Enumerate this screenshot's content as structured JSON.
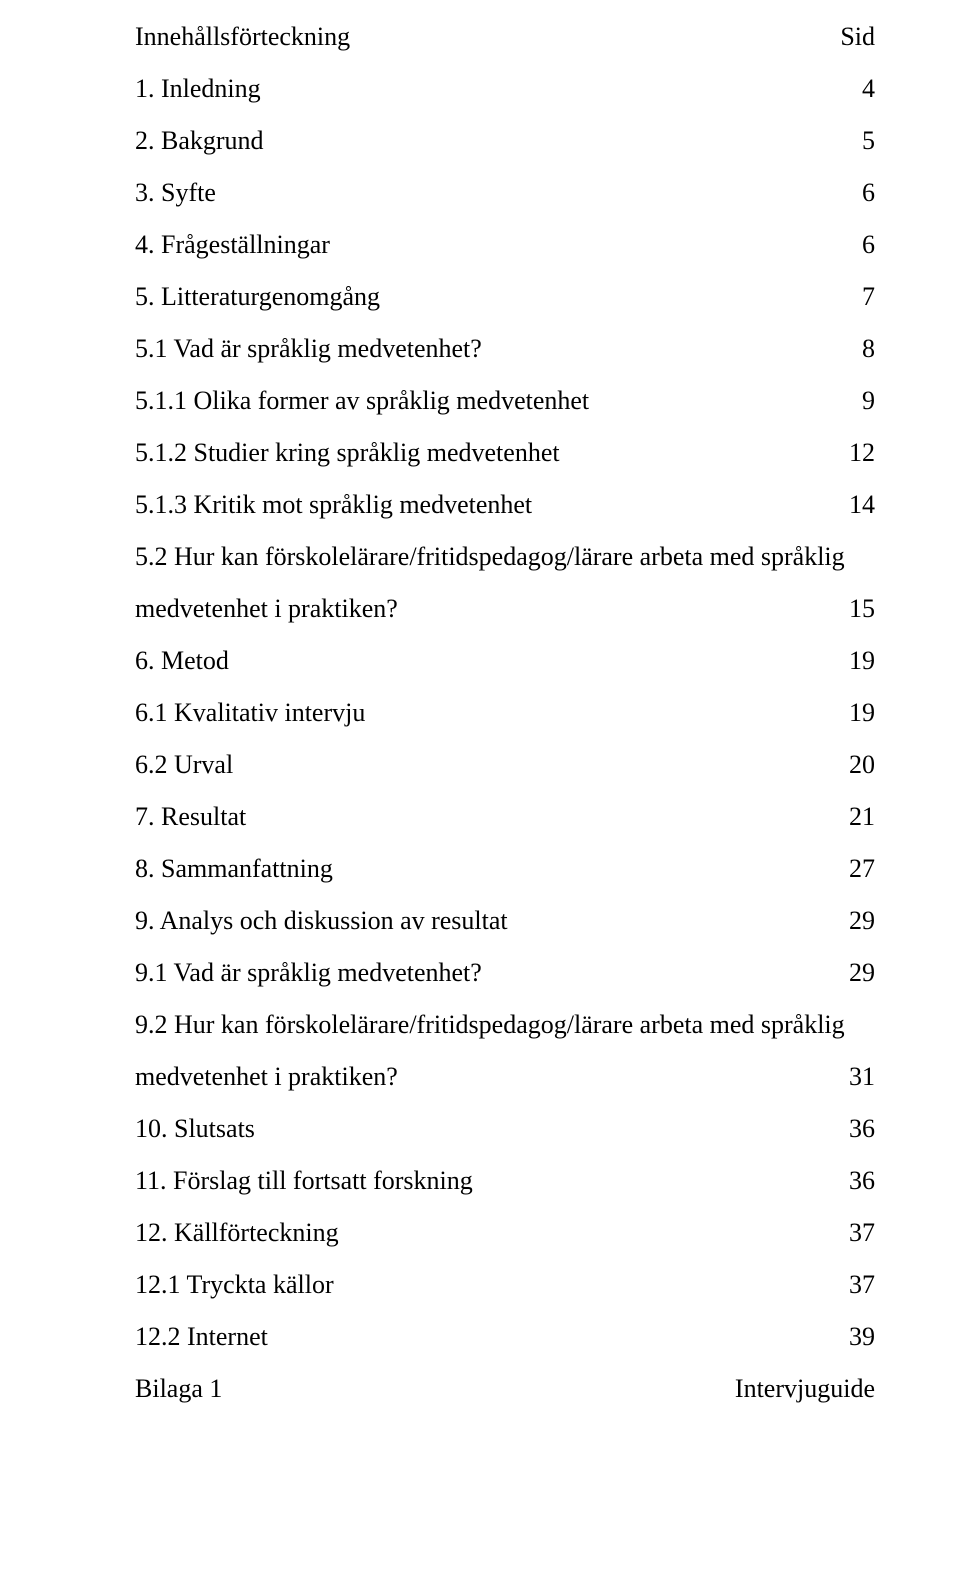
{
  "heading": {
    "label": "Innehållsförteckning",
    "page": "Sid"
  },
  "items": [
    {
      "label": "1. Inledning",
      "page": "4"
    },
    {
      "label": "2. Bakgrund",
      "page": "5"
    },
    {
      "label": "3. Syfte",
      "page": "6"
    },
    {
      "label": "4. Frågeställningar",
      "page": "6"
    },
    {
      "label": "5. Litteraturgenomgång",
      "page": "7"
    },
    {
      "label": "5.1 Vad är språklig medvetenhet?",
      "page": "8"
    },
    {
      "label": "5.1.1 Olika former av språklig medvetenhet",
      "page": "9"
    },
    {
      "label": "5.1.2 Studier kring språklig medvetenhet",
      "page": "12"
    },
    {
      "label": "5.1.3 Kritik mot språklig medvetenhet",
      "page": "14"
    }
  ],
  "multi1": {
    "line1": "5.2 Hur kan förskolelärare/fritidspedagog/lärare arbeta med språklig",
    "line2": "medvetenhet i praktiken?",
    "page": "15"
  },
  "items2": [
    {
      "label": "6. Metod",
      "page": "19"
    },
    {
      "label": "6.1 Kvalitativ intervju",
      "page": "19"
    },
    {
      "label": "6.2 Urval",
      "page": "20"
    },
    {
      "label": "7. Resultat",
      "page": "21"
    },
    {
      "label": "8. Sammanfattning",
      "page": "27"
    },
    {
      "label": "9. Analys och diskussion av resultat",
      "page": "29"
    },
    {
      "label": "9.1 Vad är språklig medvetenhet?",
      "page": "29"
    }
  ],
  "multi2": {
    "line1": "9.2 Hur kan förskolelärare/fritidspedagog/lärare arbeta med språklig",
    "line2": "medvetenhet i praktiken?",
    "page": "31"
  },
  "items3": [
    {
      "label": "10. Slutsats",
      "page": "36"
    },
    {
      "label": "11. Förslag till fortsatt forskning",
      "page": "36"
    },
    {
      "label": "12. Källförteckning",
      "page": "37"
    },
    {
      "label": "12.1 Tryckta källor",
      "page": "37"
    },
    {
      "label": "12.2 Internet",
      "page": "39"
    },
    {
      "label": "Bilaga 1",
      "page": "Intervjuguide"
    }
  ]
}
